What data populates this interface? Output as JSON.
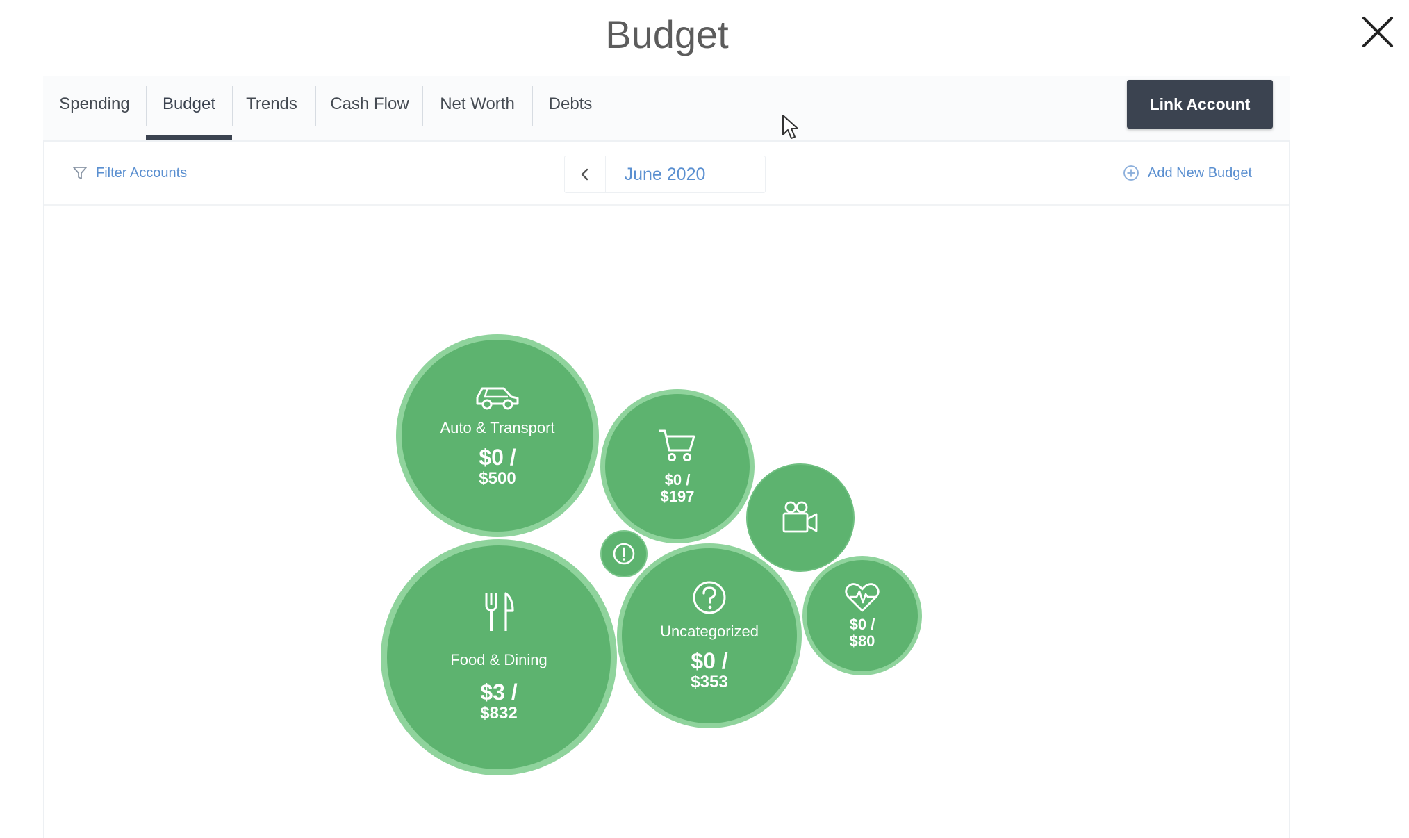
{
  "modal": {
    "title": "Budget"
  },
  "tabs": [
    {
      "label": "Spending"
    },
    {
      "label": "Budget",
      "active": true
    },
    {
      "label": "Trends"
    },
    {
      "label": "Cash Flow"
    },
    {
      "label": "Net Worth"
    },
    {
      "label": "Debts"
    }
  ],
  "actions": {
    "link_account_label": "Link Account"
  },
  "toolbar": {
    "filter_label": "Filter Accounts",
    "month": "June 2020",
    "add_budget_label": "Add New Budget"
  },
  "budgets": [
    {
      "name": "Auto & Transport",
      "icon": "car-icon",
      "spent": "$0 /",
      "budget": "$500"
    },
    {
      "name": "",
      "icon": "shopping-cart-icon",
      "spent": "$0 /",
      "budget": "$197"
    },
    {
      "name": "",
      "icon": "video-camera-icon",
      "spent": "",
      "budget": ""
    },
    {
      "name": "",
      "icon": "alert-icon",
      "spent": "",
      "budget": ""
    },
    {
      "name": "Food & Dining",
      "icon": "fork-knife-icon",
      "spent": "$3 /",
      "budget": "$832"
    },
    {
      "name": "Uncategorized",
      "icon": "question-icon",
      "spent": "$0 /",
      "budget": "$353"
    },
    {
      "name": "",
      "icon": "heart-pulse-icon",
      "spent": "$0 /",
      "budget": "$80"
    }
  ],
  "colors": {
    "bubble_fill": "#5db36f",
    "bubble_ring": "#8fd39c",
    "accent_link": "#5a8fd0",
    "button_dark": "#3b4350"
  }
}
